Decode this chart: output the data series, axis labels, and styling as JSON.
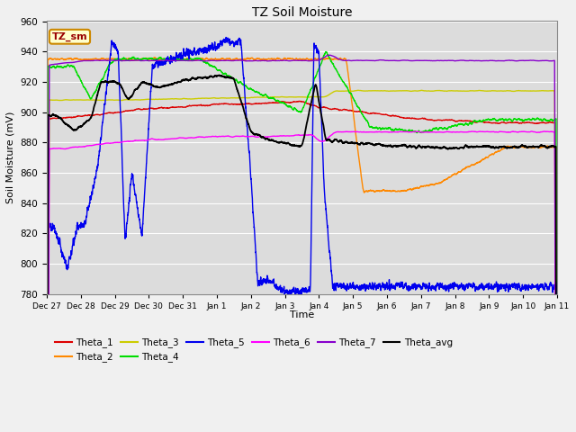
{
  "title": "TZ Soil Moisture",
  "ylabel": "Soil Moisture (mV)",
  "xlabel": "Time",
  "ylim": [
    780,
    960
  ],
  "plot_bg_color": "#dcdcdc",
  "fig_bg_color": "#f0f0f0",
  "annotation_label": "TZ_sm",
  "annotation_bg": "#ffffcc",
  "annotation_border": "#cc8800",
  "annotation_text_color": "#990000",
  "xtick_labels": [
    "Dec 27",
    "Dec 28",
    "Dec 29",
    "Dec 30",
    "Dec 31",
    "Jan 1",
    "Jan 2",
    "Jan 3",
    "Jan 4",
    "Jan 5",
    "Jan 6",
    "Jan 7",
    "Jan 8",
    "Jan 9",
    "Jan 10",
    "Jan 11"
  ],
  "series": {
    "Theta_1": {
      "color": "#dd0000",
      "lw": 1.0
    },
    "Theta_2": {
      "color": "#ff8800",
      "lw": 1.0
    },
    "Theta_3": {
      "color": "#cccc00",
      "lw": 1.0
    },
    "Theta_4": {
      "color": "#00dd00",
      "lw": 1.0
    },
    "Theta_5": {
      "color": "#0000ee",
      "lw": 1.0
    },
    "Theta_6": {
      "color": "#ff00ff",
      "lw": 1.0
    },
    "Theta_7": {
      "color": "#8800cc",
      "lw": 1.0
    },
    "Theta_avg": {
      "color": "#000000",
      "lw": 1.3
    }
  },
  "legend_order": [
    "Theta_1",
    "Theta_2",
    "Theta_3",
    "Theta_4",
    "Theta_5",
    "Theta_6",
    "Theta_7",
    "Theta_avg"
  ]
}
